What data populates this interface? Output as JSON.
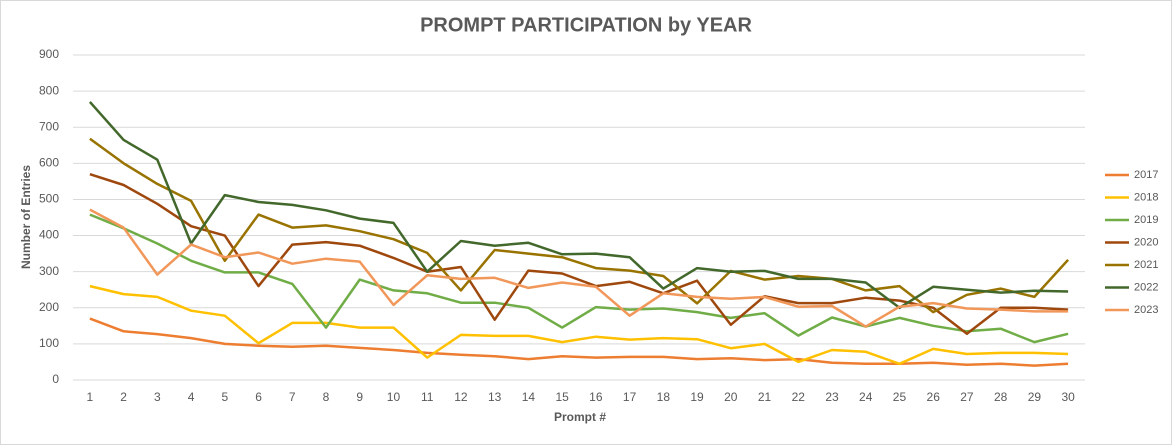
{
  "chart_data": {
    "type": "line",
    "title": "PROMPT PARTICIPATION by YEAR",
    "x_label": "Prompt #",
    "y_label": "Number of Entries",
    "categories": [
      "1",
      "2",
      "3",
      "4",
      "5",
      "6",
      "7",
      "8",
      "9",
      "10",
      "11",
      "12",
      "13",
      "14",
      "15",
      "16",
      "17",
      "18",
      "19",
      "20",
      "21",
      "22",
      "23",
      "24",
      "25",
      "26",
      "27",
      "28",
      "29",
      "30"
    ],
    "ylim": [
      0,
      900
    ],
    "yticks": [
      0,
      100,
      200,
      300,
      400,
      500,
      600,
      700,
      800,
      900
    ],
    "grid": true,
    "legend": "right",
    "series": [
      {
        "name": "2017",
        "color": "#ED7D31",
        "values": [
          170,
          135,
          127,
          116,
          100,
          95,
          92,
          95,
          89,
          83,
          75,
          70,
          66,
          58,
          66,
          62,
          64,
          64,
          58,
          60,
          55,
          58,
          48,
          45,
          45,
          48,
          42,
          45,
          40,
          45
        ]
      },
      {
        "name": "2018",
        "color": "#FFC000",
        "values": [
          260,
          238,
          230,
          192,
          178,
          102,
          158,
          158,
          145,
          145,
          62,
          125,
          122,
          122,
          105,
          120,
          112,
          116,
          113,
          88,
          100,
          50,
          83,
          78,
          45,
          86,
          72,
          75,
          75,
          72
        ]
      },
      {
        "name": "2019",
        "color": "#70AD47",
        "values": [
          458,
          420,
          378,
          330,
          298,
          298,
          266,
          145,
          278,
          248,
          240,
          214,
          214,
          200,
          145,
          202,
          195,
          198,
          188,
          172,
          185,
          123,
          173,
          148,
          172,
          150,
          135,
          142,
          105,
          128
        ]
      },
      {
        "name": "2020",
        "color": "#9E480E",
        "values": [
          570,
          540,
          488,
          426,
          400,
          260,
          375,
          382,
          372,
          338,
          300,
          313,
          167,
          303,
          295,
          260,
          272,
          240,
          275,
          153,
          232,
          213,
          213,
          228,
          220,
          200,
          128,
          200,
          200,
          195
        ]
      },
      {
        "name": "2021",
        "color": "#997300",
        "values": [
          668,
          600,
          543,
          496,
          330,
          458,
          422,
          428,
          412,
          390,
          352,
          248,
          360,
          350,
          340,
          310,
          303,
          288,
          212,
          302,
          278,
          288,
          280,
          248,
          260,
          188,
          236,
          253,
          230,
          333
        ]
      },
      {
        "name": "2022",
        "color": "#43682B",
        "values": [
          770,
          665,
          610,
          378,
          512,
          493,
          485,
          470,
          447,
          435,
          300,
          385,
          372,
          380,
          348,
          350,
          340,
          253,
          310,
          300,
          302,
          280,
          280,
          270,
          200,
          258,
          250,
          242,
          247,
          245
        ]
      },
      {
        "name": "2023",
        "color": "#F1975A",
        "values": [
          472,
          422,
          292,
          375,
          340,
          353,
          322,
          336,
          328,
          208,
          290,
          280,
          283,
          255,
          270,
          258,
          178,
          240,
          230,
          225,
          230,
          203,
          205,
          148,
          203,
          213,
          198,
          195,
          190,
          190
        ]
      }
    ]
  }
}
